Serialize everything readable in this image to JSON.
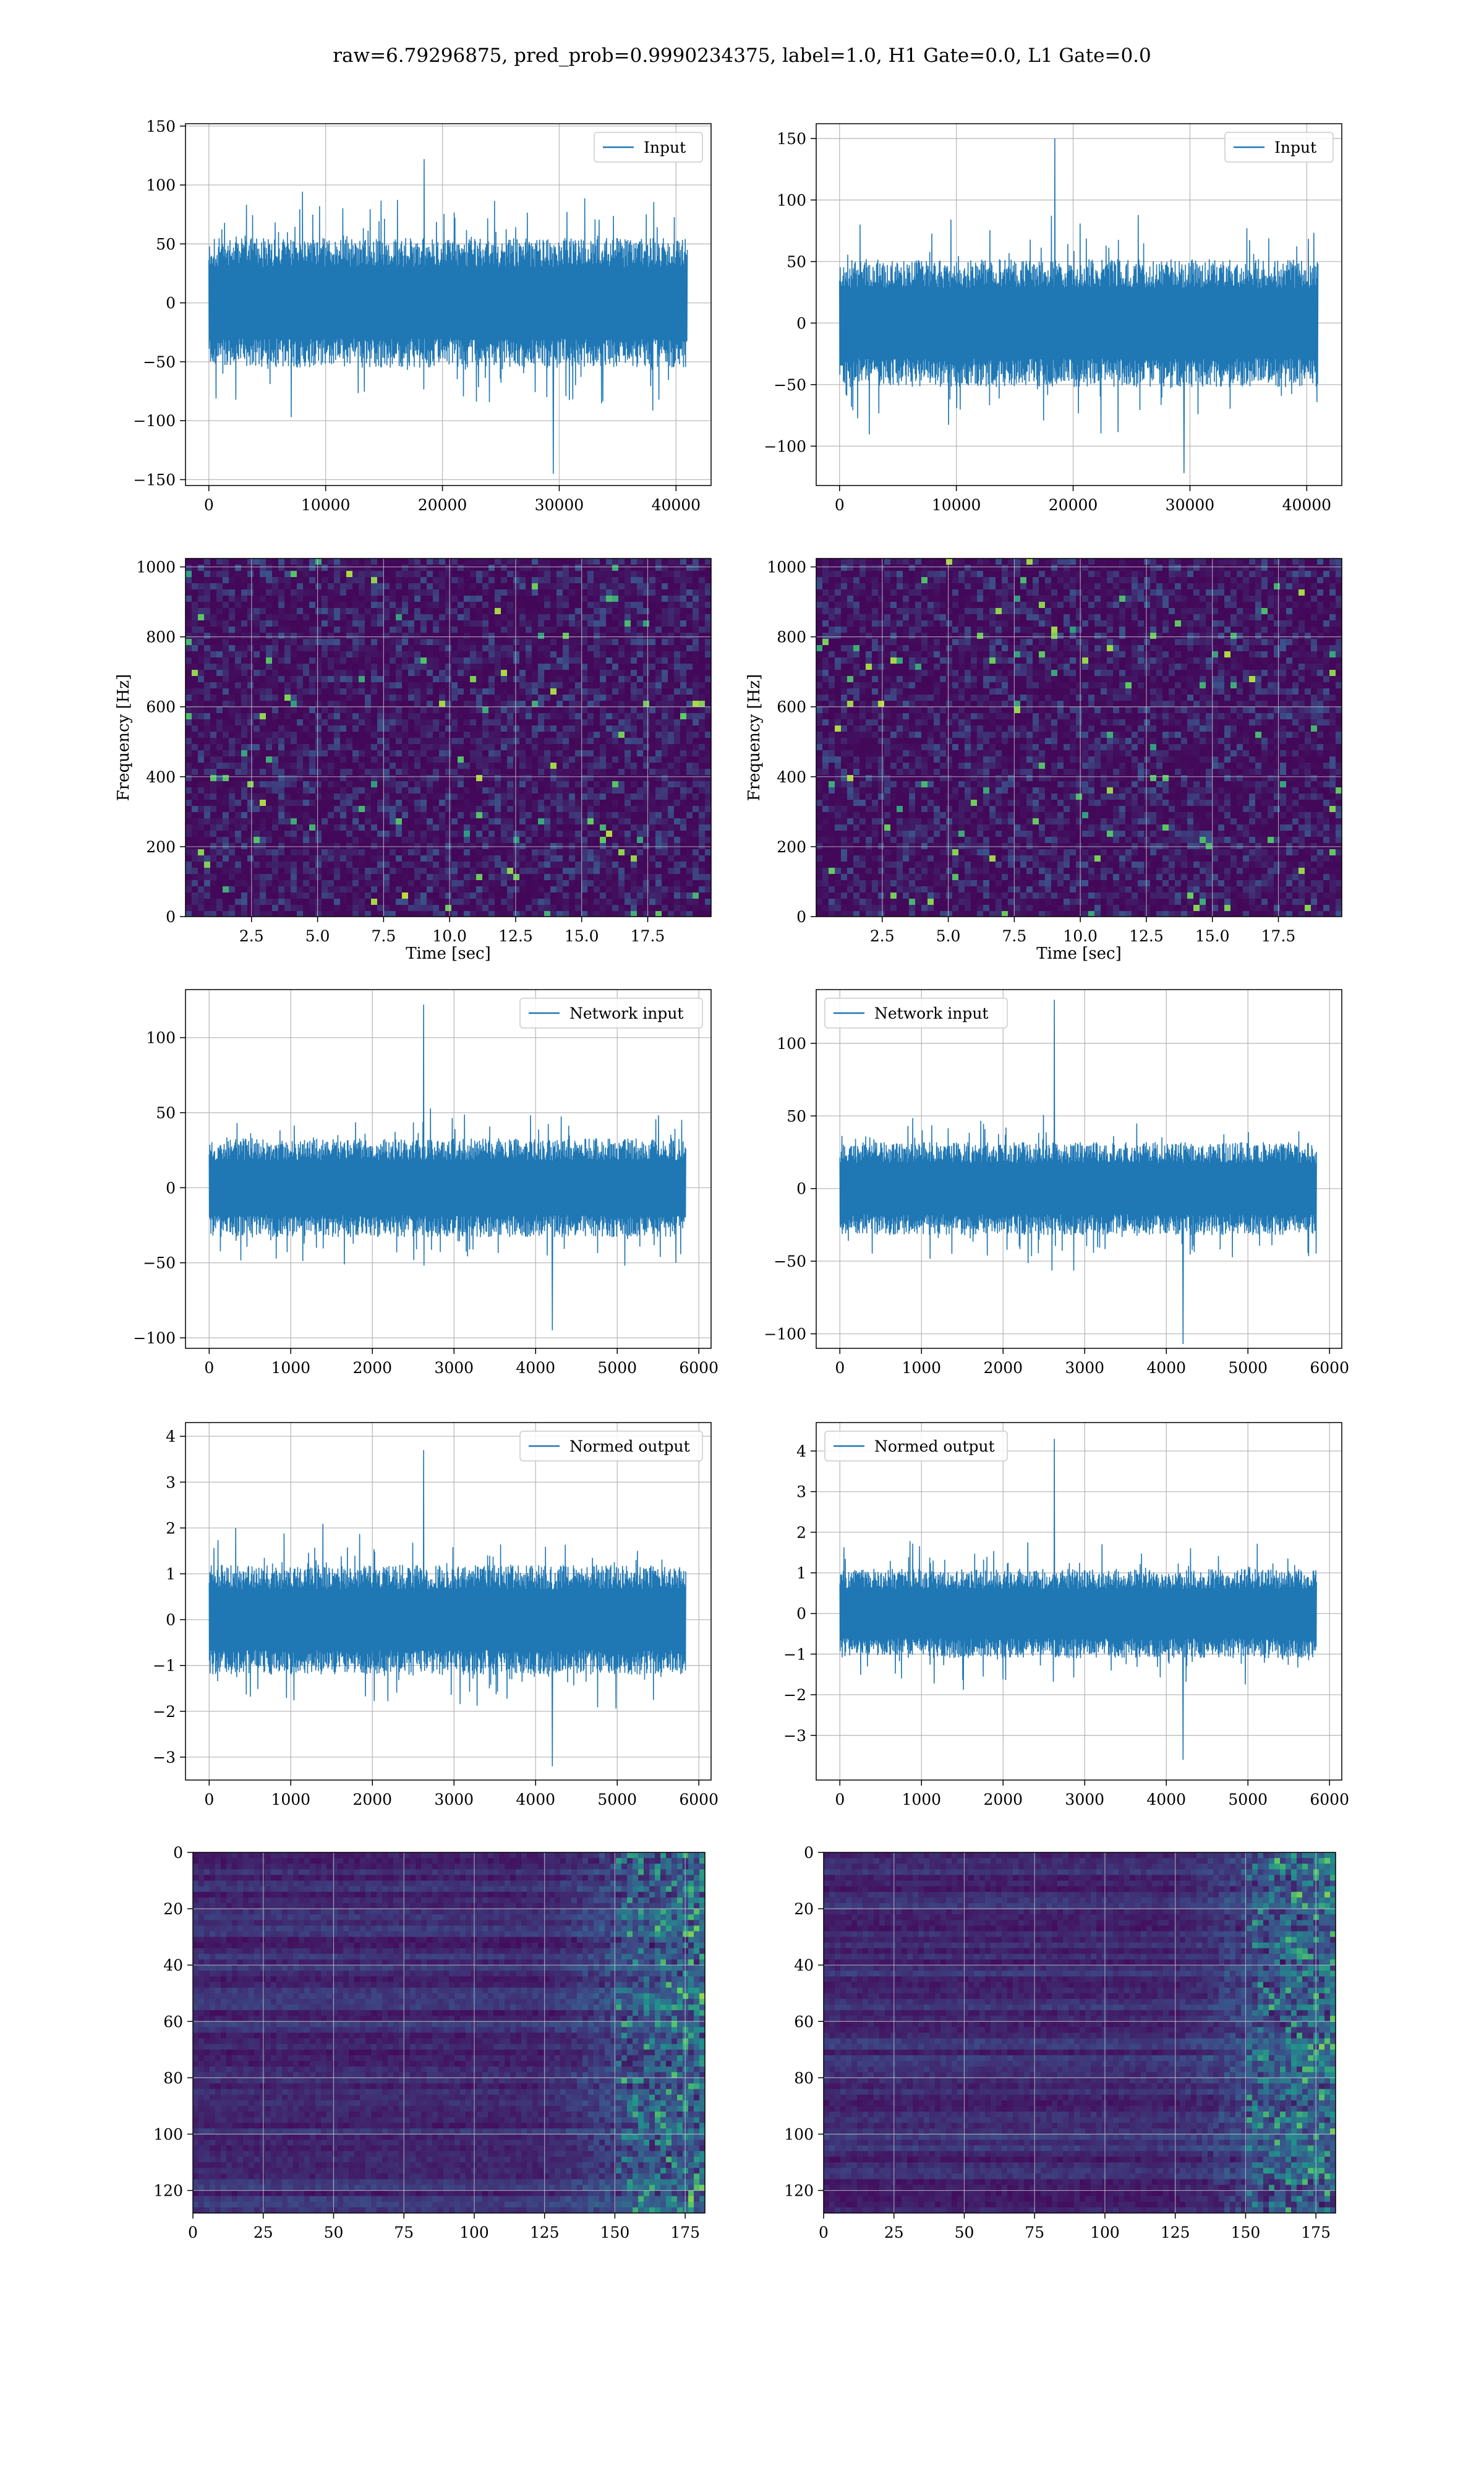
{
  "figure": {
    "title": "raw=6.79296875, pred_prob=0.9990234375, label=1.0, H1 Gate=0.0, L1 Gate=0.0"
  },
  "colors": {
    "line": "#1f77b4",
    "grid": "#b0b0b0",
    "heat_low": "#440154",
    "heat_mid": "#21918c",
    "heat_high": "#fde725"
  },
  "chart_data": [
    {
      "id": "row1-left",
      "type": "line",
      "series": [
        {
          "name": "Input"
        }
      ],
      "legend": "top-right",
      "grid": true,
      "xlim": [
        -2000,
        43000
      ],
      "ylim": [
        -155,
        152
      ],
      "xticks": [
        0,
        10000,
        20000,
        30000,
        40000
      ],
      "xtick_labels": [
        "0",
        "10000",
        "20000",
        "30000",
        "40000"
      ],
      "yticks": [
        -150,
        -100,
        -50,
        0,
        50,
        100,
        150
      ],
      "ytick_labels": [
        "−150",
        "−100",
        "−50",
        "0",
        "50",
        "100",
        "150"
      ],
      "signal": {
        "x_start": 0,
        "x_end": 40960,
        "band": 55,
        "peak": 122,
        "trough": -145,
        "seed": 11
      }
    },
    {
      "id": "row1-right",
      "type": "line",
      "series": [
        {
          "name": "Input"
        }
      ],
      "legend": "top-right",
      "grid": true,
      "xlim": [
        -2000,
        43000
      ],
      "ylim": [
        -132,
        162
      ],
      "xticks": [
        0,
        10000,
        20000,
        30000,
        40000
      ],
      "xtick_labels": [
        "0",
        "10000",
        "20000",
        "30000",
        "40000"
      ],
      "yticks": [
        -100,
        -50,
        0,
        50,
        100,
        150
      ],
      "ytick_labels": [
        "−100",
        "−50",
        "0",
        "50",
        "100",
        "150"
      ],
      "signal": {
        "x_start": 0,
        "x_end": 40960,
        "band": 52,
        "peak": 150,
        "trough": -122,
        "seed": 23
      }
    },
    {
      "id": "row2-left",
      "type": "heatmap",
      "grid": true,
      "xlim": [
        0,
        19.9
      ],
      "ylim": [
        0,
        1024
      ],
      "xlabel": "Time [sec]",
      "ylabel": "Frequency [Hz]",
      "xticks": [
        2.5,
        5.0,
        7.5,
        10.0,
        12.5,
        15.0,
        17.5
      ],
      "xtick_labels": [
        "2.5",
        "5.0",
        "7.5",
        "10.0",
        "12.5",
        "15.0",
        "17.5"
      ],
      "yticks": [
        0,
        200,
        400,
        600,
        800,
        1000
      ],
      "ytick_labels": [
        "0",
        "200",
        "400",
        "600",
        "800",
        "1000"
      ],
      "seed": 31
    },
    {
      "id": "row2-right",
      "type": "heatmap",
      "grid": true,
      "xlim": [
        0,
        19.9
      ],
      "ylim": [
        0,
        1024
      ],
      "xlabel": "Time [sec]",
      "ylabel": "Frequency [Hz]",
      "xticks": [
        2.5,
        5.0,
        7.5,
        10.0,
        12.5,
        15.0,
        17.5
      ],
      "xtick_labels": [
        "2.5",
        "5.0",
        "7.5",
        "10.0",
        "12.5",
        "15.0",
        "17.5"
      ],
      "yticks": [
        0,
        200,
        400,
        600,
        800,
        1000
      ],
      "ytick_labels": [
        "0",
        "200",
        "400",
        "600",
        "800",
        "1000"
      ],
      "seed": 47
    },
    {
      "id": "row3-left",
      "type": "line",
      "series": [
        {
          "name": "Network input"
        }
      ],
      "legend": "top-right",
      "grid": true,
      "xlim": [
        -290,
        6150
      ],
      "ylim": [
        -107,
        132
      ],
      "xticks": [
        0,
        1000,
        2000,
        3000,
        4000,
        5000,
        6000
      ],
      "xtick_labels": [
        "0",
        "1000",
        "2000",
        "3000",
        "4000",
        "5000",
        "6000"
      ],
      "yticks": [
        -100,
        -50,
        0,
        50,
        100
      ],
      "ytick_labels": [
        "−100",
        "−50",
        "0",
        "50",
        "100"
      ],
      "signal": {
        "x_start": 0,
        "x_end": 5840,
        "band": 33,
        "peak": 122,
        "trough": -95,
        "seed": 53
      }
    },
    {
      "id": "row3-right",
      "type": "line",
      "series": [
        {
          "name": "Network input"
        }
      ],
      "legend": "top-left",
      "grid": true,
      "xlim": [
        -290,
        6150
      ],
      "ylim": [
        -110,
        137
      ],
      "xticks": [
        0,
        1000,
        2000,
        3000,
        4000,
        5000,
        6000
      ],
      "xtick_labels": [
        "0",
        "1000",
        "2000",
        "3000",
        "4000",
        "5000",
        "6000"
      ],
      "yticks": [
        -100,
        -50,
        0,
        50,
        100
      ],
      "ytick_labels": [
        "−100",
        "−50",
        "0",
        "50",
        "100"
      ],
      "signal": {
        "x_start": 0,
        "x_end": 5840,
        "band": 32,
        "peak": 130,
        "trough": -107,
        "seed": 61
      }
    },
    {
      "id": "row4-left",
      "type": "line",
      "series": [
        {
          "name": "Normed output"
        }
      ],
      "legend": "top-right",
      "grid": true,
      "xlim": [
        -290,
        6150
      ],
      "ylim": [
        -3.5,
        4.3
      ],
      "xticks": [
        0,
        1000,
        2000,
        3000,
        4000,
        5000,
        6000
      ],
      "xtick_labels": [
        "0",
        "1000",
        "2000",
        "3000",
        "4000",
        "5000",
        "6000"
      ],
      "yticks": [
        -3,
        -2,
        -1,
        0,
        1,
        2,
        3,
        4
      ],
      "ytick_labels": [
        "−3",
        "−2",
        "−1",
        "0",
        "1",
        "2",
        "3",
        "4"
      ],
      "signal": {
        "x_start": 0,
        "x_end": 5840,
        "band": 1.2,
        "peak": 3.7,
        "trough": -3.2,
        "seed": 71
      }
    },
    {
      "id": "row4-right",
      "type": "line",
      "series": [
        {
          "name": "Normed output"
        }
      ],
      "legend": "top-left",
      "grid": true,
      "xlim": [
        -290,
        6150
      ],
      "ylim": [
        -4.1,
        4.7
      ],
      "xticks": [
        0,
        1000,
        2000,
        3000,
        4000,
        5000,
        6000
      ],
      "xtick_labels": [
        "0",
        "1000",
        "2000",
        "3000",
        "4000",
        "5000",
        "6000"
      ],
      "yticks": [
        -3,
        -2,
        -1,
        0,
        1,
        2,
        3,
        4
      ],
      "ytick_labels": [
        "−3",
        "−2",
        "−1",
        "0",
        "1",
        "2",
        "3",
        "4"
      ],
      "signal": {
        "x_start": 0,
        "x_end": 5840,
        "band": 1.1,
        "peak": 4.3,
        "trough": -3.6,
        "seed": 83
      }
    },
    {
      "id": "row5-left",
      "type": "heatmap",
      "grid": true,
      "xlim": [
        0,
        182
      ],
      "ylim": [
        128,
        0
      ],
      "xticks": [
        0,
        25,
        50,
        75,
        100,
        125,
        150,
        175
      ],
      "xtick_labels": [
        "0",
        "25",
        "50",
        "75",
        "100",
        "125",
        "150",
        "175"
      ],
      "yticks": [
        0,
        20,
        40,
        60,
        80,
        100,
        120
      ],
      "ytick_labels": [
        "0",
        "20",
        "40",
        "60",
        "80",
        "100",
        "120"
      ],
      "seed": 97
    },
    {
      "id": "row5-right",
      "type": "heatmap",
      "grid": true,
      "xlim": [
        0,
        182
      ],
      "ylim": [
        128,
        0
      ],
      "xticks": [
        0,
        25,
        50,
        75,
        100,
        125,
        150,
        175
      ],
      "xtick_labels": [
        "0",
        "25",
        "50",
        "75",
        "100",
        "125",
        "150",
        "175"
      ],
      "yticks": [
        0,
        20,
        40,
        60,
        80,
        100,
        120
      ],
      "ytick_labels": [
        "0",
        "20",
        "40",
        "60",
        "80",
        "100",
        "120"
      ],
      "seed": 109
    }
  ]
}
